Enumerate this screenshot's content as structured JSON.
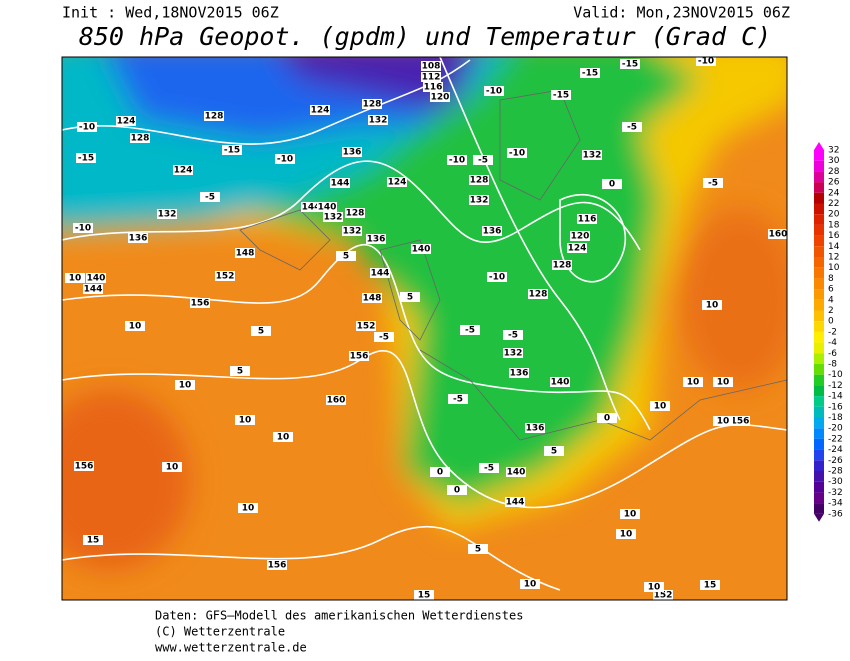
{
  "header": {
    "init": "Init : Wed,18NOV2015 06Z",
    "valid": "Valid: Mon,23NOV2015 06Z",
    "title": "850 hPa Geopot. (gpdm) und Temperatur (Grad C)"
  },
  "footer": {
    "source": "Daten: GFS–Modell des amerikanischen Wetterdienstes",
    "copyright": "(C) Wetterzentrale",
    "url": "www.wetterzentrale.de"
  },
  "colorbar": {
    "levels": [
      32,
      30,
      28,
      26,
      24,
      22,
      20,
      18,
      16,
      14,
      12,
      10,
      8,
      6,
      4,
      2,
      0,
      -2,
      -4,
      -6,
      -8,
      -10,
      -12,
      -14,
      -16,
      -18,
      -20,
      -22,
      -24,
      -26,
      -28,
      -30,
      -32,
      -34,
      -36
    ],
    "colors": [
      "#ff00ff",
      "#ee00dd",
      "#dd0099",
      "#cc0055",
      "#b30000",
      "#cc1100",
      "#dd2200",
      "#e63300",
      "#ee4400",
      "#f05500",
      "#f46600",
      "#f77700",
      "#fa8800",
      "#fb9900",
      "#fcaa00",
      "#fdc000",
      "#ffd700",
      "#ffee00",
      "#e8f000",
      "#aaee00",
      "#66dd00",
      "#22cc22",
      "#00bb44",
      "#00cc88",
      "#00bbbb",
      "#00aaee",
      "#0088ff",
      "#0066ff",
      "#2244ee",
      "#3322cc",
      "#4411aa",
      "#550099",
      "#660088",
      "#440066"
    ]
  },
  "geopotential_labels": [
    108,
    112,
    116,
    120,
    124,
    128,
    124,
    132,
    136,
    140,
    144,
    148,
    152,
    156,
    128,
    124,
    128,
    132,
    136,
    144,
    124,
    144,
    140,
    132,
    128,
    132,
    136,
    140,
    144,
    148,
    152,
    156,
    160,
    156,
    156,
    132,
    116,
    120,
    124,
    128,
    128,
    132,
    136,
    140,
    136,
    140,
    144,
    160,
    156,
    152,
    128,
    132,
    136
  ],
  "temperature_labels": [
    -15,
    -15,
    -10,
    -10,
    -15,
    -5,
    -10,
    -10,
    -5,
    0,
    -5,
    -10,
    -15,
    -15,
    -10,
    -5,
    -10,
    10,
    10,
    5,
    5,
    10,
    10,
    10,
    10,
    10,
    15,
    -5,
    -5,
    0,
    0,
    -5,
    0,
    5,
    10,
    10,
    5,
    10,
    15,
    15,
    10,
    10,
    10,
    10,
    10,
    10,
    -10,
    -5,
    5,
    5,
    -5
  ]
}
